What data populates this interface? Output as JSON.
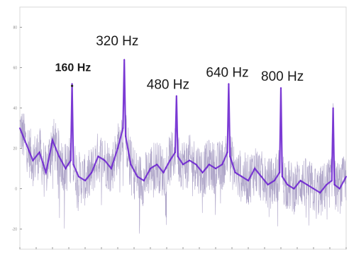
{
  "chart_data": {
    "type": "line",
    "title": "",
    "xlabel": "",
    "ylabel": "",
    "xlim": [
      0,
      1000
    ],
    "ylim": [
      -30,
      90
    ],
    "y_ticks": [
      -20,
      0,
      20,
      40,
      60,
      80
    ],
    "x_ticks": [
      0,
      50,
      100,
      150,
      200,
      250,
      300,
      350,
      400,
      450,
      500,
      550,
      600,
      650,
      700,
      750,
      800,
      850,
      900,
      950,
      1000
    ],
    "grid": false,
    "line_color": "#6a1fd0",
    "annotations": [
      {
        "text": "160 Hz",
        "x": 160,
        "bold": true,
        "marker": true
      },
      {
        "text": "320 Hz",
        "x": 320,
        "bold": false,
        "marker": false
      },
      {
        "text": "480 Hz",
        "x": 480,
        "bold": false,
        "marker": false
      },
      {
        "text": "640 Hz",
        "x": 640,
        "bold": false,
        "marker": false
      },
      {
        "text": "800 Hz",
        "x": 800,
        "bold": false,
        "marker": false
      }
    ],
    "series": [
      {
        "values_x": [
          0,
          20,
          40,
          60,
          80,
          100,
          120,
          140,
          156,
          160,
          164,
          180,
          200,
          220,
          240,
          260,
          280,
          300,
          316,
          320,
          324,
          340,
          360,
          380,
          400,
          420,
          440,
          460,
          476,
          480,
          484,
          500,
          520,
          540,
          560,
          580,
          600,
          620,
          636,
          640,
          644,
          660,
          680,
          700,
          720,
          740,
          760,
          780,
          796,
          800,
          804,
          820,
          840,
          860,
          880,
          900,
          920,
          940,
          956,
          960,
          964,
          980,
          1000
        ],
        "values_y": [
          30,
          22,
          14,
          18,
          8,
          24,
          16,
          10,
          14,
          52,
          12,
          6,
          4,
          8,
          16,
          14,
          10,
          20,
          30,
          64,
          26,
          12,
          6,
          4,
          10,
          12,
          8,
          14,
          18,
          46,
          16,
          12,
          14,
          12,
          8,
          12,
          10,
          12,
          18,
          52,
          16,
          8,
          6,
          4,
          10,
          6,
          2,
          4,
          8,
          50,
          6,
          2,
          0,
          4,
          2,
          0,
          -2,
          2,
          4,
          40,
          2,
          0,
          6
        ]
      }
    ]
  }
}
